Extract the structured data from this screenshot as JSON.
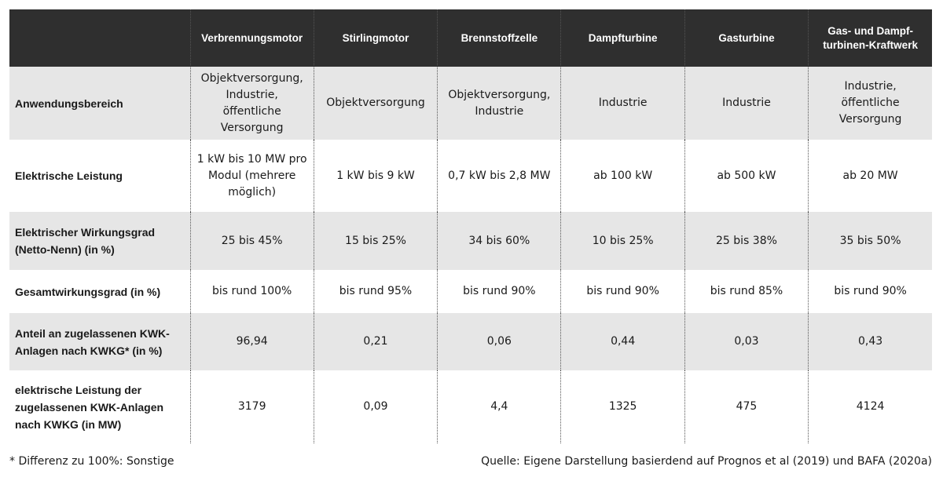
{
  "table": {
    "headers": [
      "",
      "Verbrennungsmotor",
      "Stirlingmotor",
      "Brennstoffzelle",
      "Dampfturbine",
      "Gasturbine",
      "Gas- und Dampf-\nturbinen-Kraftwerk"
    ],
    "rows": [
      {
        "label": "Anwendungsbereich",
        "cells": [
          "Objektversorgung,\nIndustrie,\nöffentliche\nVersorgung",
          "Objektversorgung",
          "Objektversorgung,\nIndustrie",
          "Industrie",
          "Industrie",
          "Industrie,\nöffentliche\nVersorgung"
        ]
      },
      {
        "label": "Elektrische Leistung",
        "cells": [
          "1 kW bis 10 MW pro\nModul (mehrere\nmöglich)",
          "1 kW bis 9 kW",
          "0,7 kW bis 2,8 MW",
          "ab 100 kW",
          "ab 500 kW",
          "ab 20 MW"
        ]
      },
      {
        "label": "Elektrischer Wirkungsgrad\n(Netto-Nenn) (in %)",
        "cells": [
          "25 bis 45%",
          "15 bis 25%",
          "34 bis 60%",
          "10 bis 25%",
          "25 bis 38%",
          "35 bis 50%"
        ]
      },
      {
        "label": "Gesamtwirkungsgrad (in %)",
        "cells": [
          "bis rund 100%",
          "bis rund 95%",
          "bis rund 90%",
          "bis rund 90%",
          "bis rund 85%",
          "bis rund 90%"
        ]
      },
      {
        "label": "Anteil an zugelassenen KWK-\nAnlagen nach KWKG* (in %)",
        "cells": [
          "96,94",
          "0,21",
          "0,06",
          "0,44",
          "0,03",
          "0,43"
        ]
      },
      {
        "label": "elektrische Leistung der\nzugelassenen KWK-Anlagen\nnach KWKG (in MW)",
        "cells": [
          "3179",
          "0,09",
          "4,4",
          "1325",
          "475",
          "4124"
        ]
      }
    ]
  },
  "footer": {
    "note": "* Differenz zu 100%: Sonstige",
    "source": "Quelle: Eigene Darstellung basierdend auf Prognos et al (2019) und BAFA (2020a)"
  },
  "colors": {
    "header_bg": "#2f2f2f",
    "header_text": "#ffffff",
    "alt_row_bg": "#e6e6e6",
    "row_bg": "#ffffff"
  }
}
